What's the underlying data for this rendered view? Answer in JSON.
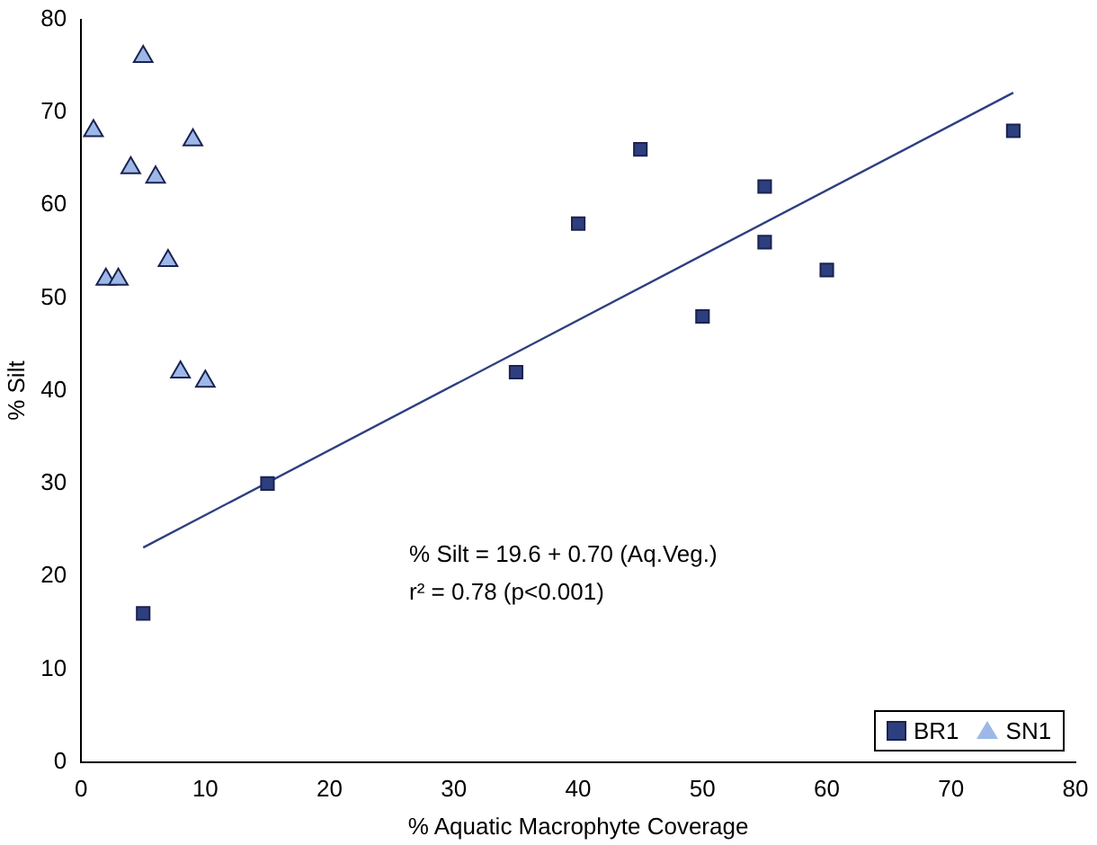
{
  "chart_data": {
    "type": "scatter",
    "xlabel": "% Aquatic Macrophyte Coverage",
    "ylabel": "% Silt",
    "xlim": [
      0,
      80
    ],
    "xticks": [
      0,
      10,
      20,
      30,
      40,
      50,
      60,
      70,
      80
    ],
    "ylim": [
      0,
      80
    ],
    "yticks": [
      0,
      10,
      20,
      30,
      40,
      50,
      60,
      70,
      80
    ],
    "grid": false,
    "legend": "bottom right",
    "series": [
      {
        "name": "BR1",
        "marker": "square",
        "color": "#2e3f80",
        "x": [
          5,
          15,
          35,
          40,
          45,
          50,
          55,
          55,
          60,
          75
        ],
        "values": [
          16,
          30,
          42,
          58,
          66,
          48,
          62,
          56,
          53,
          68
        ]
      },
      {
        "name": "SN1",
        "marker": "triangle",
        "color": "#9db8e8",
        "x": [
          1,
          2,
          3,
          4,
          5,
          6,
          7,
          8,
          9,
          10
        ],
        "values": [
          68,
          52,
          52,
          64,
          76,
          63,
          54,
          42,
          67,
          41
        ]
      },
      {
        "type": "line",
        "marker": "none",
        "line_style": "solid",
        "color": "#2e3f80",
        "x": [
          5,
          75
        ],
        "values": [
          23.1,
          72.1
        ]
      }
    ],
    "annotations": [
      "% Silt = 19.6 + 0.70 (Aq.Veg.)",
      "r² = 0.78 (p<0.001)"
    ]
  }
}
